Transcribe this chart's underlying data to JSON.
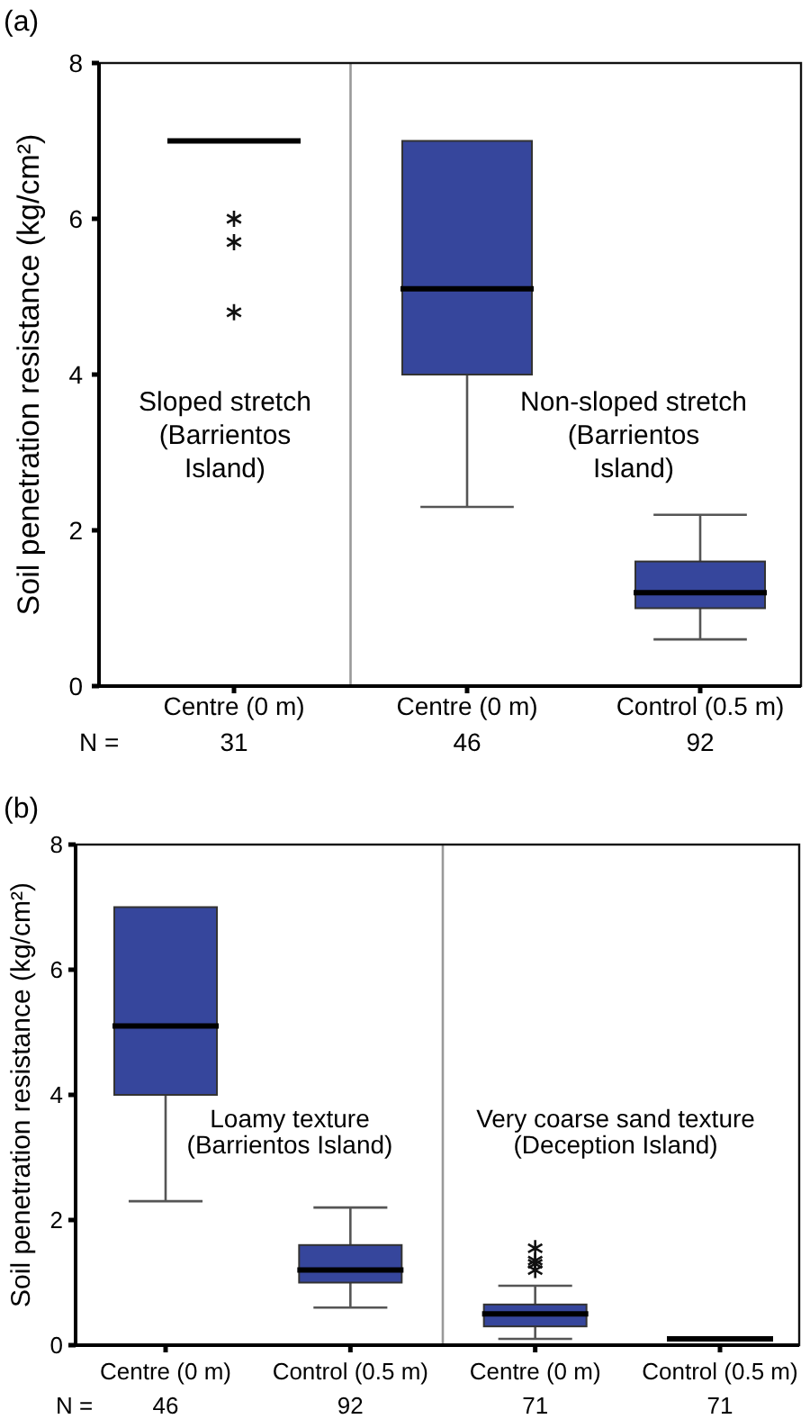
{
  "chart_data": [
    {
      "type": "box",
      "title": "(a)",
      "ylabel": "Soil penetration resistance (kg/cm²)",
      "categories": [
        "Centre (0 m)",
        "Centre (0 m)",
        "Control (0.5 m)"
      ],
      "colors": [
        "#000000",
        "#36469c",
        "#36469c"
      ],
      "boxes": [
        {
          "low": 7,
          "q1": 7,
          "median": 7,
          "q3": 7,
          "high": 7,
          "outliers": [
            6.0,
            5.7,
            4.8
          ]
        },
        {
          "low": 2.3,
          "q1": 4.0,
          "median": 5.1,
          "q3": 7.0,
          "high": 7.0
        },
        {
          "low": 0.6,
          "q1": 1.0,
          "median": 1.2,
          "q3": 1.6,
          "high": 2.2
        }
      ],
      "ylim": [
        0,
        8
      ],
      "yticks": [
        0,
        2,
        4,
        6,
        8
      ],
      "annotations": [
        "Sloped stretch\n(Barrientos\nIsland)",
        "Non-sloped stretch\n(Barrientos\nIsland)",
        "N =",
        "31",
        "46",
        "92"
      ]
    },
    {
      "type": "box",
      "title": "(b)",
      "ylabel": "Soil penetration resistance (kg/cm²)",
      "categories": [
        "Centre (0 m)",
        "Control (0.5 m)",
        "Centre (0 m)",
        "Control (0.5 m)"
      ],
      "colors": [
        "#36469c",
        "#36469c",
        "#36469c",
        "#000000"
      ],
      "boxes": [
        {
          "low": 2.3,
          "q1": 4.0,
          "median": 5.1,
          "q3": 7.0,
          "high": 7.0
        },
        {
          "low": 0.6,
          "q1": 1.0,
          "median": 1.2,
          "q3": 1.6,
          "high": 2.2
        },
        {
          "low": 0.1,
          "q1": 0.3,
          "median": 0.5,
          "q3": 0.65,
          "high": 0.95,
          "outliers": [
            1.2,
            1.3,
            1.35,
            1.55
          ]
        },
        {
          "low": 0.1,
          "q1": 0.1,
          "median": 0.1,
          "q3": 0.1,
          "high": 0.1
        }
      ],
      "ylim": [
        0,
        8
      ],
      "yticks": [
        0,
        2,
        4,
        6,
        8
      ],
      "annotations": [
        "Loamy texture\n(Barrientos Island)",
        "Very coarse sand texture\n(Deception Island)",
        "N =",
        "46",
        "92",
        "71",
        "71"
      ]
    }
  ]
}
